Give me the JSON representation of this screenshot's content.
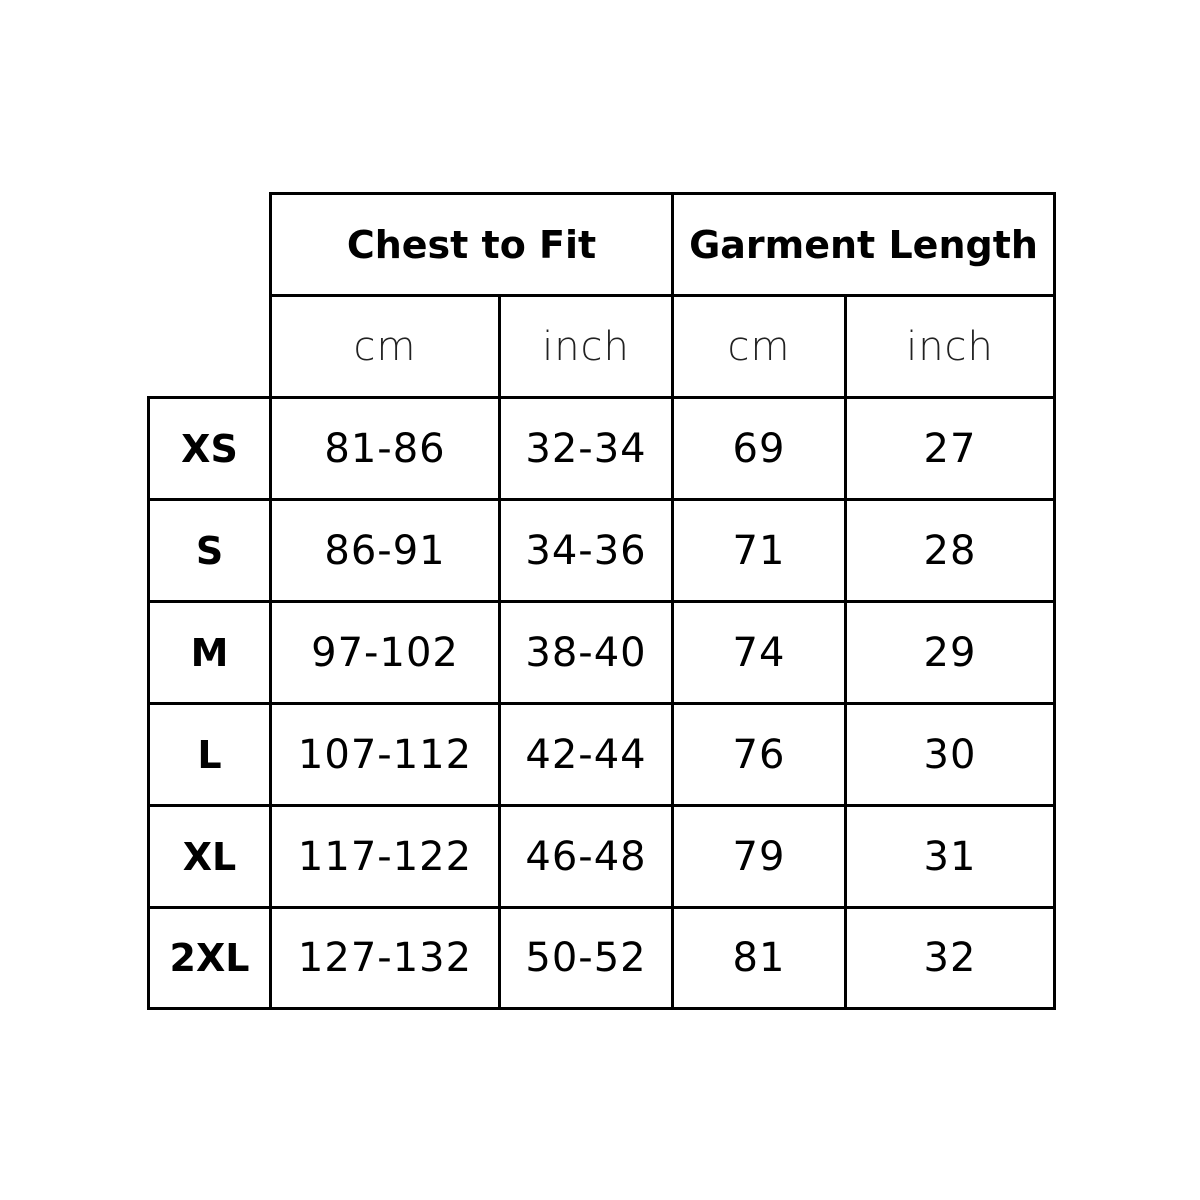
{
  "headers": [
    {
      "label": "Chest to Fit"
    },
    {
      "label": "Garment Length"
    }
  ],
  "units": [
    "cm",
    "inch",
    "cm",
    "inch"
  ],
  "rows": [
    {
      "size": "XS",
      "values": [
        "81-86",
        "32-34",
        "69",
        "27"
      ]
    },
    {
      "size": "S",
      "values": [
        "86-91",
        "34-36",
        "71",
        "28"
      ]
    },
    {
      "size": "M",
      "values": [
        "97-102",
        "38-40",
        "74",
        "29"
      ]
    },
    {
      "size": "L",
      "values": [
        "107-112",
        "42-44",
        "76",
        "30"
      ]
    },
    {
      "size": "XL",
      "values": [
        "117-122",
        "46-48",
        "79",
        "31"
      ]
    },
    {
      "size": "2XL",
      "values": [
        "127-132",
        "50-52",
        "81",
        "32"
      ]
    }
  ]
}
